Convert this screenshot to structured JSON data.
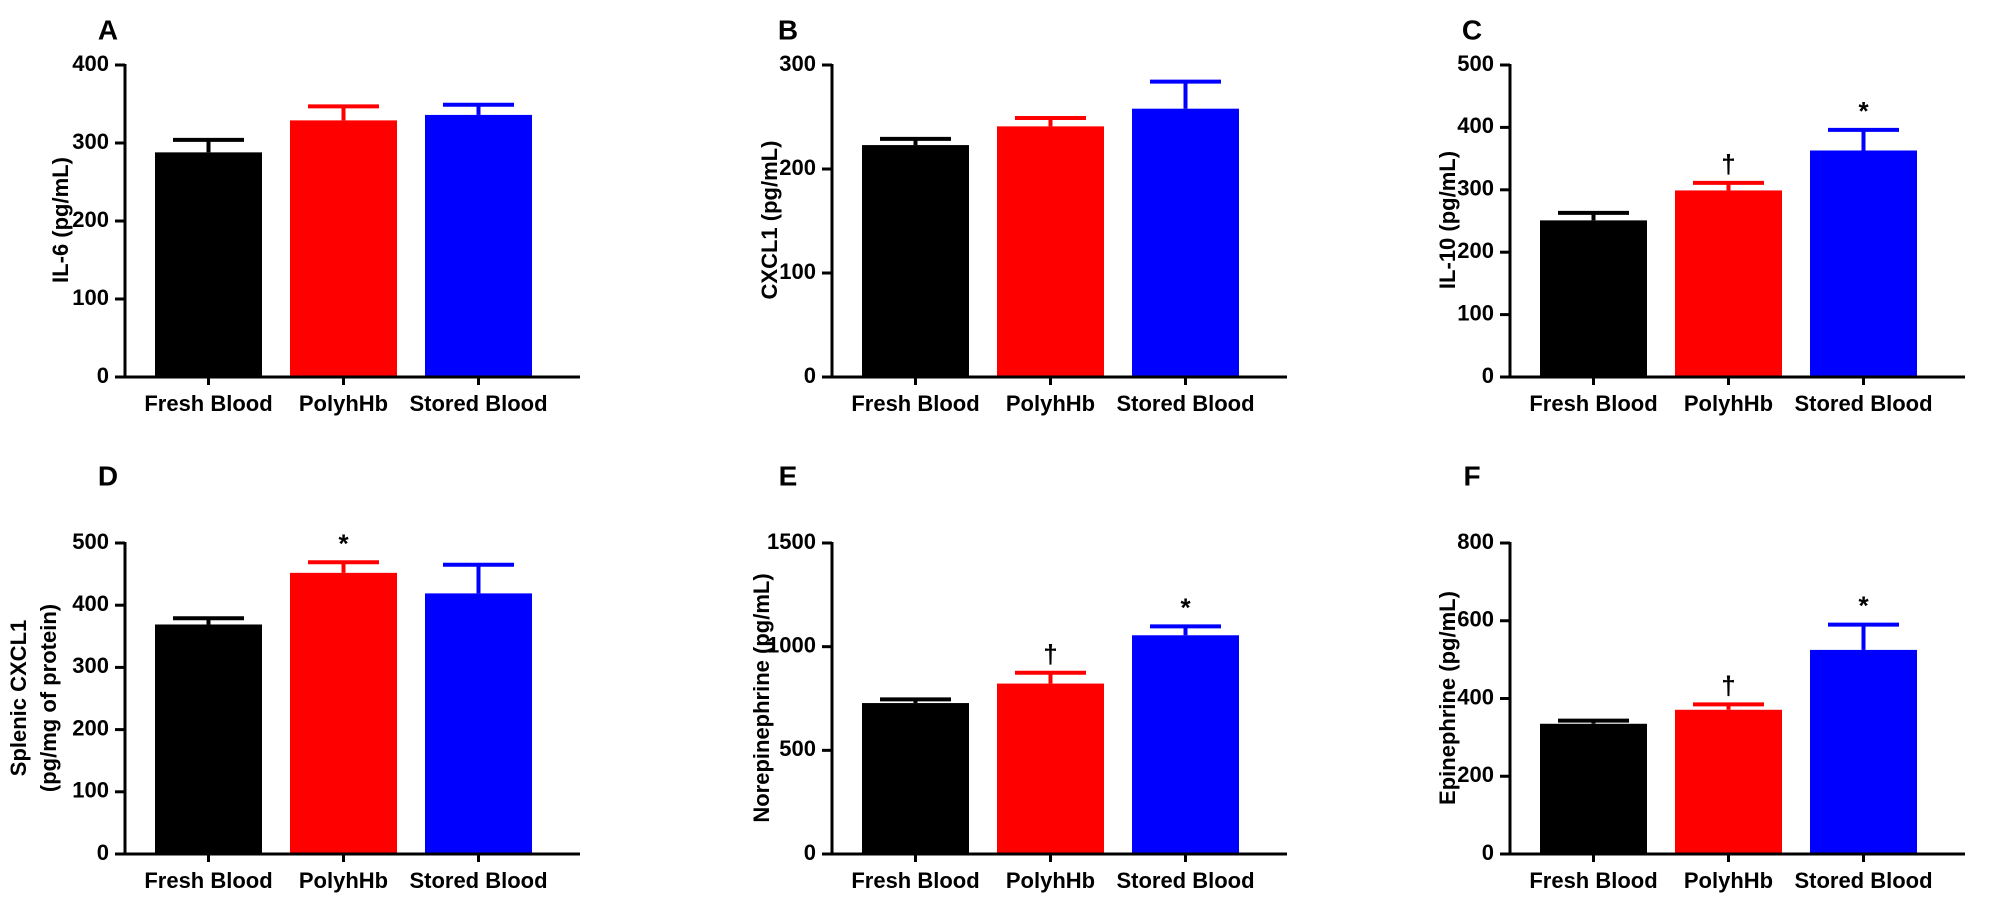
{
  "figure": {
    "categories": [
      "Fresh Blood",
      "PolyhHb",
      "Stored Blood"
    ],
    "colors": [
      "#000000",
      "#ff0000",
      "#0000ff"
    ]
  },
  "chart_data": [
    {
      "type": "bar",
      "panel": "A",
      "ylabel_lines": [
        "IL-6 (pg/mL)"
      ],
      "ylim": [
        0,
        400
      ],
      "yticks": [
        0,
        100,
        200,
        300,
        400
      ],
      "values": [
        288,
        329,
        336
      ],
      "errors": [
        16,
        18,
        13
      ],
      "annotations": [
        "",
        "",
        ""
      ]
    },
    {
      "type": "bar",
      "panel": "B",
      "ylabel_lines": [
        "CXCL1 (pg/mL)"
      ],
      "ylim": [
        0,
        300
      ],
      "yticks": [
        0,
        100,
        200,
        300
      ],
      "values": [
        223,
        241,
        258
      ],
      "errors": [
        6,
        8,
        26
      ],
      "annotations": [
        "",
        "",
        ""
      ]
    },
    {
      "type": "bar",
      "panel": "C",
      "ylabel_lines": [
        "IL-10 (pg/mL)"
      ],
      "ylim": [
        0,
        500
      ],
      "yticks": [
        0,
        100,
        200,
        300,
        400,
        500
      ],
      "values": [
        251,
        299,
        363
      ],
      "errors": [
        12,
        12,
        33
      ],
      "annotations": [
        "",
        "†",
        "*"
      ]
    },
    {
      "type": "bar",
      "panel": "D",
      "ylabel_lines": [
        "Splenic CXCL1",
        "(pg/mg of protein)"
      ],
      "ylim": [
        0,
        500
      ],
      "yticks": [
        0,
        100,
        200,
        300,
        400,
        500
      ],
      "values": [
        369,
        452,
        419
      ],
      "errors": [
        10,
        17,
        46
      ],
      "annotations": [
        "",
        "*",
        ""
      ]
    },
    {
      "type": "bar",
      "panel": "E",
      "ylabel_lines": [
        "Norepinephrine (pg/mL)"
      ],
      "ylim": [
        0,
        1500
      ],
      "yticks": [
        0,
        500,
        1000,
        1500
      ],
      "values": [
        728,
        822,
        1055
      ],
      "errors": [
        18,
        52,
        43
      ],
      "annotations": [
        "",
        "†",
        "*"
      ]
    },
    {
      "type": "bar",
      "panel": "F",
      "ylabel_lines": [
        "Epinephrine (pg/mL)"
      ],
      "ylim": [
        0,
        800
      ],
      "yticks": [
        0,
        200,
        400,
        600,
        800
      ],
      "values": [
        335,
        371,
        525
      ],
      "errors": [
        8,
        14,
        65
      ],
      "annotations": [
        "",
        "†",
        "*"
      ]
    }
  ]
}
